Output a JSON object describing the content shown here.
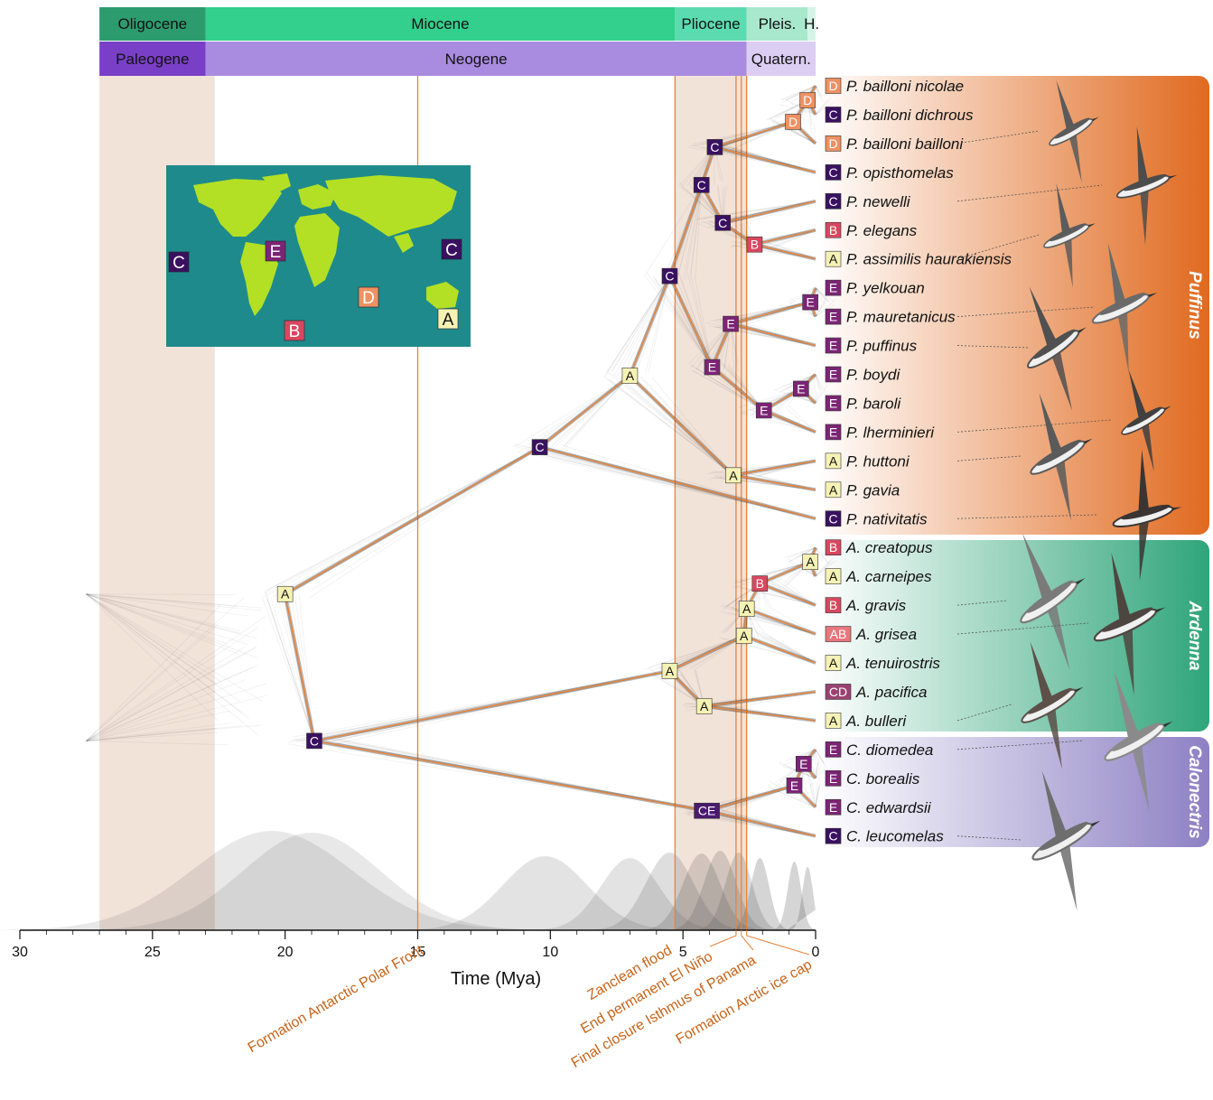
{
  "colors": {
    "orange_line": "#e9843a",
    "event_text": "#c8641a",
    "band": "#f2e3d9",
    "A": "#f6f2b4",
    "B": "#d9475f",
    "C": "#3a1160",
    "D": "#ef9162",
    "E": "#7c2475",
    "AB": "#e8767c",
    "CD": "#9a4270",
    "puffinus": "#e06a1f",
    "ardenna": "#2fa57a",
    "calonectris": "#8d81c4",
    "map_ocean": "#1f8a8c",
    "map_land": "#b3e024"
  },
  "epochs": [
    {
      "name": "Oligocene",
      "start": 27,
      "end": 23.0,
      "color": "#2c9c6e"
    },
    {
      "name": "Miocene",
      "start": 23.0,
      "end": 5.3,
      "color": "#33cf8d"
    },
    {
      "name": "Pliocene",
      "start": 5.3,
      "end": 2.6,
      "color": "#5ddbb0"
    },
    {
      "name": "Pleis.",
      "start": 2.6,
      "end": 0.3,
      "color": "#a8e8cd"
    },
    {
      "name": "H.",
      "start": 0.3,
      "end": 0,
      "color": "#d4f5e5"
    }
  ],
  "periods": [
    {
      "name": "Paleogene",
      "start": 27,
      "end": 23.0,
      "color": "#7a3fc7"
    },
    {
      "name": "Neogene",
      "start": 23.0,
      "end": 2.6,
      "color": "#a98be0"
    },
    {
      "name": "Quatern.",
      "start": 2.6,
      "end": 0,
      "color": "#dccdf2"
    }
  ],
  "axis": {
    "title": "Time (Mya)",
    "min": 0,
    "max": 30,
    "ticks": [
      30,
      25,
      20,
      15,
      10,
      5,
      0
    ],
    "tick_labels": [
      "30",
      "25",
      "20",
      "15",
      "10",
      "5",
      "0"
    ]
  },
  "events": [
    {
      "label": "Formation Antarctic Polar Front",
      "time": 15
    },
    {
      "label": "Zanclean flood",
      "time": 5.3
    },
    {
      "label": "End permanent El Niño",
      "time": 3.0
    },
    {
      "label": "Final closure Isthmus of Panama",
      "time": 2.8
    },
    {
      "label": "Formation Arctic ice cap",
      "time": 2.6
    }
  ],
  "map": {
    "labels": [
      "C",
      "E",
      "C",
      "D",
      "B",
      "A"
    ]
  },
  "taxa": [
    {
      "name": "P. bailloni nicolae",
      "area": "D"
    },
    {
      "name": "P. bailloni dichrous",
      "area": "C"
    },
    {
      "name": "P. bailloni bailloni",
      "area": "D"
    },
    {
      "name": "P. opisthomelas",
      "area": "C"
    },
    {
      "name": "P. newelli",
      "area": "C"
    },
    {
      "name": "P. elegans",
      "area": "B"
    },
    {
      "name": "P. assimilis haurakiensis",
      "area": "A"
    },
    {
      "name": "P. yelkouan",
      "area": "E"
    },
    {
      "name": "P. mauretanicus",
      "area": "E"
    },
    {
      "name": "P. puffinus",
      "area": "E"
    },
    {
      "name": "P. boydi",
      "area": "E"
    },
    {
      "name": "P. baroli",
      "area": "E"
    },
    {
      "name": "P. lherminieri",
      "area": "E"
    },
    {
      "name": "P. huttoni",
      "area": "A"
    },
    {
      "name": "P. gavia",
      "area": "A"
    },
    {
      "name": "P. nativitatis",
      "area": "C"
    },
    {
      "name": "A. creatopus",
      "area": "B"
    },
    {
      "name": "A. carneipes",
      "area": "A"
    },
    {
      "name": "A. gravis",
      "area": "B"
    },
    {
      "name": "A. grisea",
      "area": "AB"
    },
    {
      "name": "A. tenuirostris",
      "area": "A"
    },
    {
      "name": "A. pacifica",
      "area": "CD"
    },
    {
      "name": "A. bulleri",
      "area": "A"
    },
    {
      "name": "C. diomedea",
      "area": "E"
    },
    {
      "name": "C. borealis",
      "area": "E"
    },
    {
      "name": "C. edwardsii",
      "area": "E"
    },
    {
      "name": "C. leucomelas",
      "area": "C"
    }
  ],
  "genera": [
    {
      "name": "Puffinus"
    },
    {
      "name": "Ardenna"
    },
    {
      "name": "Calonectris"
    }
  ],
  "nodes": [
    {
      "id": "n1",
      "t": 0.3,
      "area": "D"
    },
    {
      "id": "n2",
      "t": 0.85,
      "area": "D"
    },
    {
      "id": "n3",
      "t": 3.8,
      "area": "C"
    },
    {
      "id": "n4",
      "t": 3.5,
      "area": "C"
    },
    {
      "id": "n5",
      "t": 4.3,
      "area": "C"
    },
    {
      "id": "n6",
      "t": 2.3,
      "area": "B"
    },
    {
      "id": "n7",
      "t": 5.5,
      "area": "C"
    },
    {
      "id": "n8",
      "t": 0.2,
      "area": "E"
    },
    {
      "id": "n9",
      "t": 3.2,
      "area": "E"
    },
    {
      "id": "n10",
      "t": 3.9,
      "area": "E"
    },
    {
      "id": "n11",
      "t": 0.55,
      "area": "E"
    },
    {
      "id": "n12",
      "t": 1.95,
      "area": "E"
    },
    {
      "id": "n13",
      "t": 7.0,
      "area": "A"
    },
    {
      "id": "n14",
      "t": 3.1,
      "area": "A"
    },
    {
      "id": "n15",
      "t": 10.4,
      "area": "C"
    },
    {
      "id": "n16",
      "t": 20.0,
      "area": "A"
    },
    {
      "id": "n17",
      "t": 0.2,
      "area": "A"
    },
    {
      "id": "n18",
      "t": 2.1,
      "area": "B"
    },
    {
      "id": "n19",
      "t": 2.6,
      "area": "A"
    },
    {
      "id": "n20",
      "t": 2.7,
      "area": "A"
    },
    {
      "id": "n21",
      "t": 5.5,
      "area": "A"
    },
    {
      "id": "n22",
      "t": 4.2,
      "area": "A"
    },
    {
      "id": "n23",
      "t": 0.45,
      "area": "E"
    },
    {
      "id": "n24",
      "t": 0.8,
      "area": "E"
    },
    {
      "id": "n25",
      "t": 4.1,
      "area": "CE"
    },
    {
      "id": "n26",
      "t": 18.9,
      "area": "C"
    }
  ]
}
